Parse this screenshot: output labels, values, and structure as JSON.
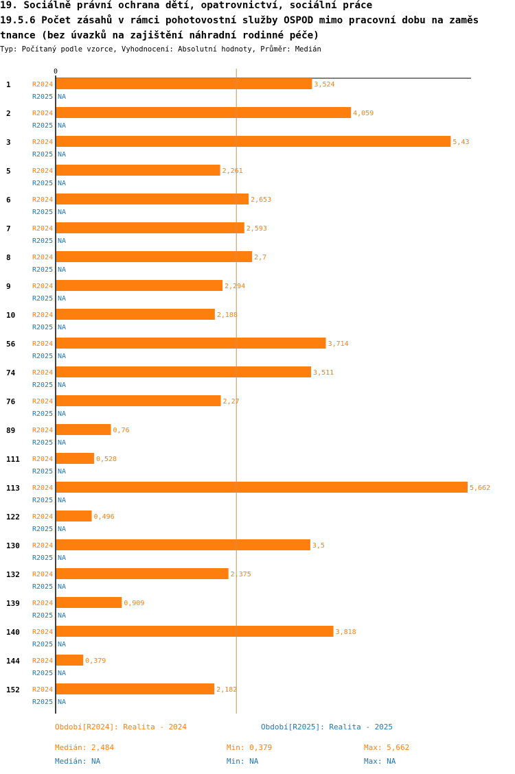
{
  "header": {
    "title_line1": "19. Sociálně právní ochrana dětí, opatrovnictví, sociální práce",
    "title_line2": "19.5.6 Počet zásahů v rámci pohotovostní služby OSPOD mimo pracovní dobu na zaměs",
    "title_line3": "tnance (bez úvazků na zajištění náhradní rodinné péče)",
    "subtitle": "Typ: Počítaný podle vzorce, Vyhodnocení: Absolutní hodnoty, Průměr: Medián"
  },
  "colors": {
    "series_2024": "#ff7f0e",
    "series_2025": "#1f77b4",
    "median_line": "#d09050",
    "axis": "#000000"
  },
  "chart_data": {
    "type": "bar",
    "orientation": "horizontal",
    "axis_zero_label": "0",
    "xlim": [
      0,
      5.662
    ],
    "median_2024": 2.484,
    "categories": [
      "1",
      "2",
      "3",
      "5",
      "6",
      "7",
      "8",
      "9",
      "10",
      "56",
      "74",
      "76",
      "89",
      "111",
      "113",
      "122",
      "130",
      "132",
      "139",
      "140",
      "144",
      "152"
    ],
    "series": [
      {
        "name": "R2024",
        "values": [
          3.524,
          4.059,
          5.43,
          2.261,
          2.653,
          2.593,
          2.7,
          2.294,
          2.188,
          3.714,
          3.511,
          2.27,
          0.76,
          0.528,
          5.662,
          0.496,
          3.5,
          2.375,
          0.909,
          3.818,
          0.379,
          2.182
        ],
        "labels": [
          "3,524",
          "4,059",
          "5,43",
          "2,261",
          "2,653",
          "2,593",
          "2,7",
          "2,294",
          "2,188",
          "3,714",
          "3,511",
          "2,27",
          "0,76",
          "0,528",
          "5,662",
          "0,496",
          "3,5",
          "2,375",
          "0,909",
          "3,818",
          "0,379",
          "2,182"
        ]
      },
      {
        "name": "R2025",
        "values": [
          null,
          null,
          null,
          null,
          null,
          null,
          null,
          null,
          null,
          null,
          null,
          null,
          null,
          null,
          null,
          null,
          null,
          null,
          null,
          null,
          null,
          null
        ],
        "labels": [
          "NA",
          "NA",
          "NA",
          "NA",
          "NA",
          "NA",
          "NA",
          "NA",
          "NA",
          "NA",
          "NA",
          "NA",
          "NA",
          "NA",
          "NA",
          "NA",
          "NA",
          "NA",
          "NA",
          "NA",
          "NA",
          "NA"
        ]
      }
    ]
  },
  "legend": {
    "period_2024": "Období[R2024]: Realita - 2024",
    "period_2025": "Období[R2025]: Realita - 2025"
  },
  "stats": {
    "r2024": {
      "median": "Medián: 2,484",
      "min": "Min: 0,379",
      "max": "Max: 5,662"
    },
    "r2025": {
      "median": "Medián: NA",
      "min": "Min: NA",
      "max": "Max: NA"
    }
  }
}
